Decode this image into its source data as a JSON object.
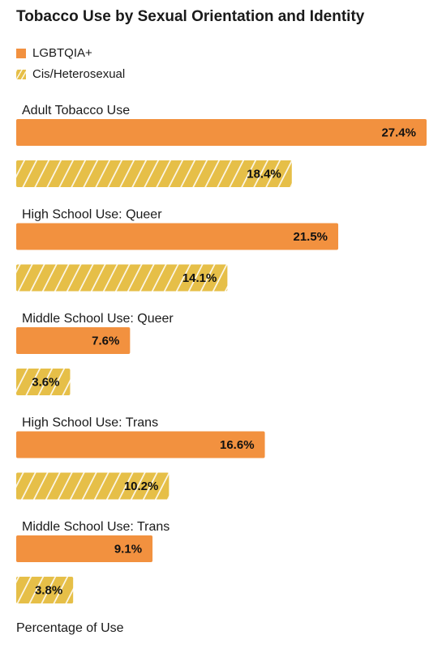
{
  "chart_data": {
    "type": "bar",
    "orientation": "horizontal",
    "title": "Tobacco Use by Sexual Orientation and Identity",
    "xlabel": "Percentage of Use",
    "ylabel": "",
    "xlim": [
      0,
      27.4
    ],
    "grid": false,
    "legend_position": "top-left",
    "categories": [
      "Adult Tobacco Use",
      "High School Use: Queer",
      "Middle School Use: Queer",
      "High School Use: Trans",
      "Middle School Use: Trans"
    ],
    "series": [
      {
        "name": "LGBTQIA+",
        "color": "#f2913f",
        "pattern": "solid",
        "values": [
          27.4,
          21.5,
          7.6,
          16.6,
          9.1
        ],
        "labels": [
          "27.4%",
          "21.5%",
          "7.6%",
          "16.6%",
          "9.1%"
        ]
      },
      {
        "name": "Cis/Heterosexual",
        "color": "#e6bf48",
        "pattern": "diagonal-stripes",
        "values": [
          18.4,
          14.1,
          3.6,
          10.2,
          3.8
        ],
        "labels": [
          "18.4%",
          "14.1%",
          "3.6%",
          "10.2%",
          "3.8%"
        ]
      }
    ]
  }
}
